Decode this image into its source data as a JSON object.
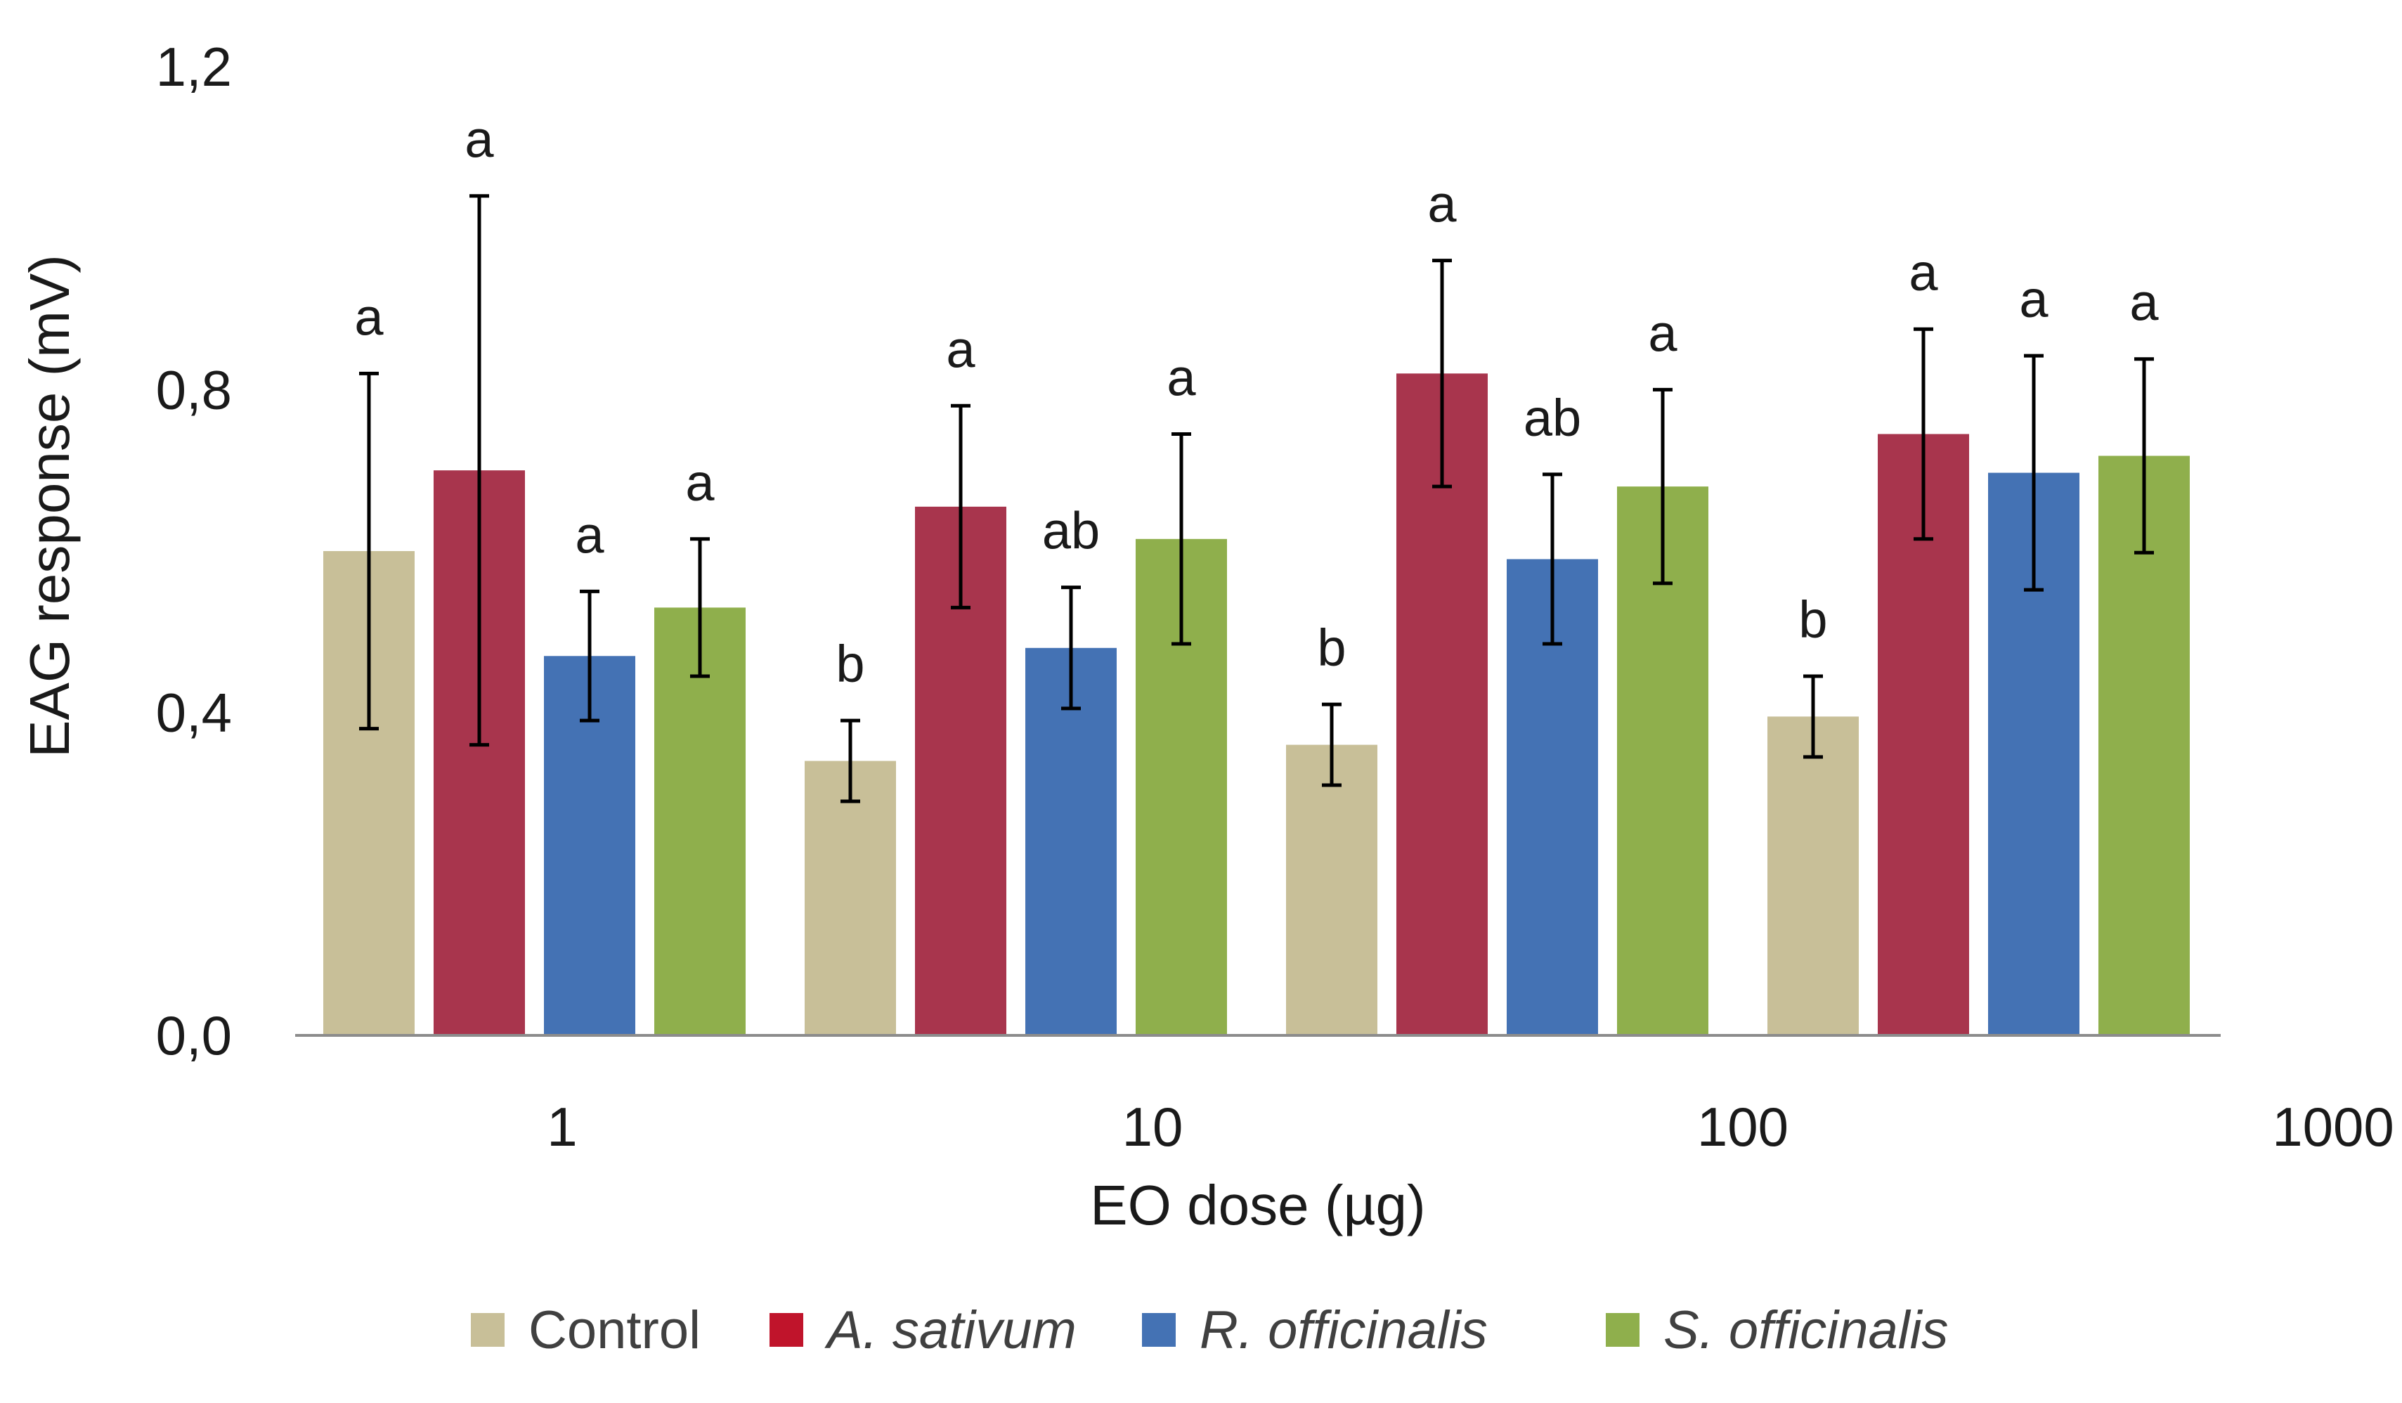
{
  "chart_data": {
    "type": "bar",
    "title": "",
    "xlabel": "EO dose (µg)",
    "ylabel": "EAG response (mV)",
    "ylim": [
      0,
      1.2
    ],
    "yticks": [
      "0,0",
      "0,4",
      "0,8",
      "1,2"
    ],
    "ytick_values": [
      0,
      0.4,
      0.8,
      1.2
    ],
    "categories": [
      "1",
      "10",
      "100",
      "1000"
    ],
    "legend_position": "bottom",
    "series": [
      {
        "name": "Control",
        "italic": false,
        "color": "#c8bf98",
        "values": [
          0.6,
          0.34,
          0.36,
          0.395
        ],
        "errors": [
          0.22,
          0.05,
          0.05,
          0.05
        ],
        "labels": [
          "a",
          "b",
          "b",
          "b"
        ]
      },
      {
        "name": "A. sativum",
        "italic": true,
        "color": "#a8354d",
        "values": [
          0.7,
          0.655,
          0.82,
          0.745
        ],
        "errors": [
          0.34,
          0.125,
          0.14,
          0.13
        ],
        "labels": [
          "a",
          "a",
          "a",
          "a"
        ]
      },
      {
        "name": "R. officinalis",
        "italic": true,
        "color": "#4472b4",
        "values": [
          0.47,
          0.48,
          0.59,
          0.697
        ],
        "errors": [
          0.08,
          0.075,
          0.105,
          0.145
        ],
        "labels": [
          "a",
          "ab",
          "ab",
          "a"
        ]
      },
      {
        "name": "S. officinalis",
        "italic": true,
        "color": "#8faf4c",
        "values": [
          0.53,
          0.615,
          0.68,
          0.718
        ],
        "errors": [
          0.085,
          0.13,
          0.12,
          0.12
        ],
        "labels": [
          "a",
          "a",
          "a",
          "a"
        ]
      }
    ],
    "legend_swatch_colors": [
      "#c8bf98",
      "#c0142b",
      "#4472b4",
      "#8faf4c"
    ]
  }
}
